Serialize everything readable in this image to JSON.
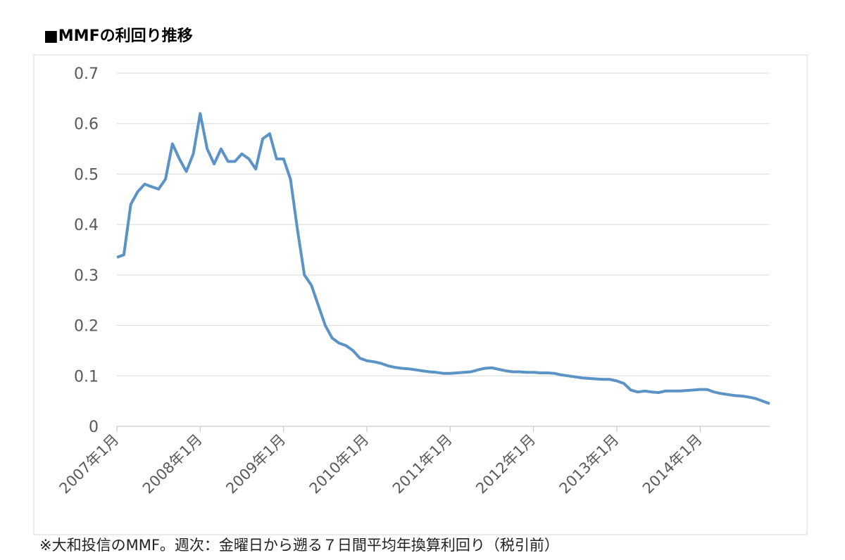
{
  "chart_data": {
    "type": "line",
    "title": "■MMFの利回り推移",
    "note": "※大和投信のMMF。週次：金曜日から遡る７日間平均年換算利回り（税引前）",
    "x": [
      "2007-01",
      "2007-02",
      "2007-03",
      "2007-04",
      "2007-05",
      "2007-06",
      "2007-07",
      "2007-08",
      "2007-09",
      "2007-10",
      "2007-11",
      "2007-12",
      "2008-01",
      "2008-02",
      "2008-03",
      "2008-04",
      "2008-05",
      "2008-06",
      "2008-07",
      "2008-08",
      "2008-09",
      "2008-10",
      "2008-11",
      "2008-12",
      "2009-01",
      "2009-02",
      "2009-03",
      "2009-04",
      "2009-05",
      "2009-06",
      "2009-07",
      "2009-08",
      "2009-09",
      "2009-10",
      "2009-11",
      "2009-12",
      "2010-01",
      "2010-02",
      "2010-03",
      "2010-04",
      "2010-05",
      "2010-06",
      "2010-07",
      "2010-08",
      "2010-09",
      "2010-10",
      "2010-11",
      "2010-12",
      "2011-01",
      "2011-02",
      "2011-03",
      "2011-04",
      "2011-05",
      "2011-06",
      "2011-07",
      "2011-08",
      "2011-09",
      "2011-10",
      "2011-11",
      "2011-12",
      "2012-01",
      "2012-02",
      "2012-03",
      "2012-04",
      "2012-05",
      "2012-06",
      "2012-07",
      "2012-08",
      "2012-09",
      "2012-10",
      "2012-11",
      "2012-12",
      "2013-01",
      "2013-02",
      "2013-03",
      "2013-04",
      "2013-05",
      "2013-06",
      "2013-07",
      "2013-08",
      "2013-09",
      "2013-10",
      "2013-11",
      "2013-12",
      "2014-01",
      "2014-02",
      "2014-03",
      "2014-04",
      "2014-05",
      "2014-06",
      "2014-07",
      "2014-08",
      "2014-09",
      "2014-10",
      "2014-11"
    ],
    "series": [
      {
        "color": "#5b93c6",
        "values": [
          0.335,
          0.34,
          0.44,
          0.465,
          0.48,
          0.475,
          0.47,
          0.49,
          0.56,
          0.53,
          0.505,
          0.54,
          0.62,
          0.55,
          0.52,
          0.55,
          0.525,
          0.525,
          0.54,
          0.53,
          0.51,
          0.57,
          0.58,
          0.53,
          0.53,
          0.49,
          0.39,
          0.3,
          0.28,
          0.24,
          0.2,
          0.175,
          0.165,
          0.16,
          0.15,
          0.135,
          0.13,
          0.128,
          0.125,
          0.12,
          0.117,
          0.115,
          0.114,
          0.112,
          0.11,
          0.108,
          0.107,
          0.105,
          0.105,
          0.106,
          0.107,
          0.108,
          0.112,
          0.115,
          0.116,
          0.113,
          0.11,
          0.108,
          0.108,
          0.107,
          0.107,
          0.106,
          0.106,
          0.105,
          0.102,
          0.1,
          0.098,
          0.096,
          0.095,
          0.094,
          0.093,
          0.093,
          0.09,
          0.085,
          0.072,
          0.068,
          0.07,
          0.068,
          0.067,
          0.07,
          0.07,
          0.07,
          0.071,
          0.072,
          0.073,
          0.073,
          0.068,
          0.065,
          0.063,
          0.061,
          0.06,
          0.058,
          0.055,
          0.05,
          0.045
        ]
      }
    ],
    "xlim": [
      "2007-01",
      "2014-11"
    ],
    "xticks": [
      {
        "value": "2007-01",
        "label": "2007年1月"
      },
      {
        "value": "2008-01",
        "label": "2008年1月"
      },
      {
        "value": "2009-01",
        "label": "2009年1月"
      },
      {
        "value": "2010-01",
        "label": "2010年1月"
      },
      {
        "value": "2011-01",
        "label": "2011年1月"
      },
      {
        "value": "2012-01",
        "label": "2012年1月"
      },
      {
        "value": "2013-01",
        "label": "2013年1月"
      },
      {
        "value": "2014-01",
        "label": "2014年1月"
      }
    ],
    "ylim": [
      0,
      0.7
    ],
    "yticks": [
      0,
      0.1,
      0.2,
      0.3,
      0.4,
      0.5,
      0.6,
      0.7
    ],
    "grid": true
  }
}
